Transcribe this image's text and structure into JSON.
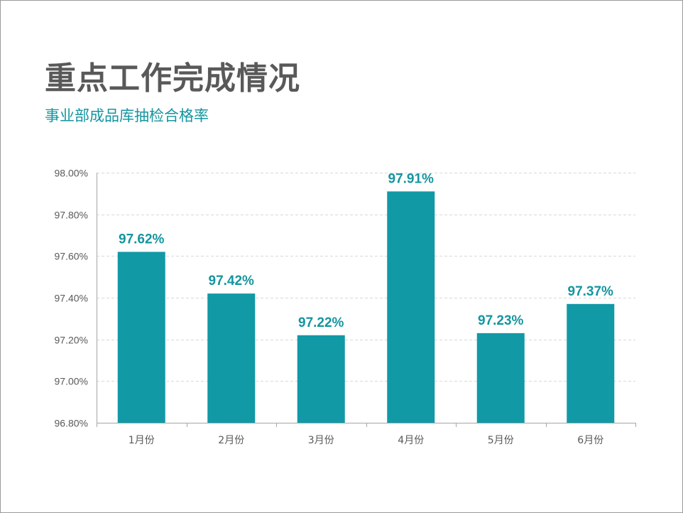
{
  "slide": {
    "title": "重点工作完成情况",
    "subtitle": "事业部成品库抽检合格率"
  },
  "colors": {
    "bar": "#1199a6",
    "data_label": "#15959f",
    "title": "#595959",
    "subtitle": "#15959f",
    "axis": "#a6a6a6",
    "grid": "#d9d9d9",
    "tick_text": "#595959"
  },
  "chart_data": {
    "type": "bar",
    "title": "",
    "xlabel": "",
    "ylabel": "",
    "categories": [
      "1月份",
      "2月份",
      "3月份",
      "4月份",
      "5月份",
      "6月份"
    ],
    "values": [
      97.62,
      97.42,
      97.22,
      97.91,
      97.23,
      97.37
    ],
    "data_labels": [
      "97.62%",
      "97.42%",
      "97.22%",
      "97.91%",
      "97.23%",
      "97.37%"
    ],
    "ylim": [
      96.8,
      98.0
    ],
    "yticks": [
      96.8,
      97.0,
      97.2,
      97.4,
      97.6,
      97.8,
      98.0
    ],
    "ytick_labels": [
      "96.80%",
      "97.00%",
      "97.20%",
      "97.40%",
      "97.60%",
      "97.80%",
      "98.00%"
    ],
    "grid": "horizontal-dashed",
    "legend": "none"
  }
}
